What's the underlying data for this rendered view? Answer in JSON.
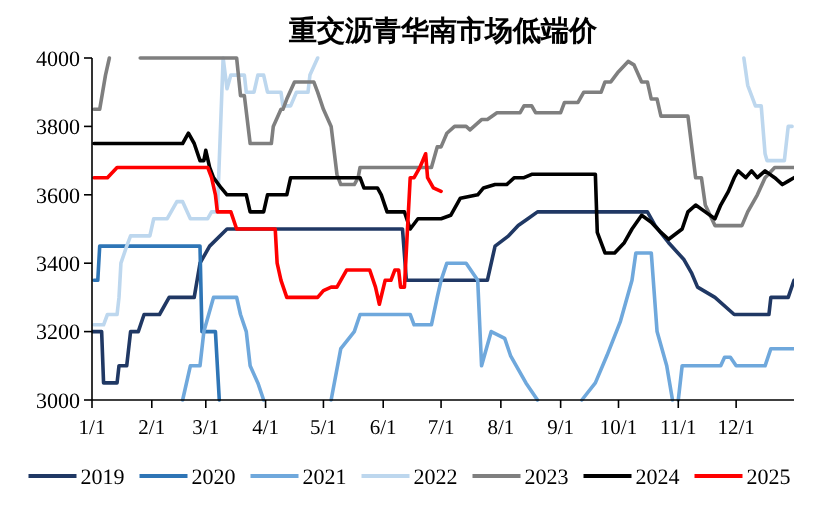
{
  "chart_data": {
    "type": "line",
    "title": "重交沥青华南市场低端价",
    "xlim": [
      "--01-01",
      "--12-31"
    ],
    "xticks": [
      {
        "value": "--01-01",
        "label": "1/1"
      },
      {
        "value": "--02-01",
        "label": "2/1"
      },
      {
        "value": "--03-01",
        "label": "3/1"
      },
      {
        "value": "--04-01",
        "label": "4/1"
      },
      {
        "value": "--05-01",
        "label": "5/1"
      },
      {
        "value": "--06-01",
        "label": "6/1"
      },
      {
        "value": "--07-01",
        "label": "7/1"
      },
      {
        "value": "--08-01",
        "label": "8/1"
      },
      {
        "value": "--09-01",
        "label": "9/1"
      },
      {
        "value": "--10-01",
        "label": "10/1"
      },
      {
        "value": "--11-01",
        "label": "11/1"
      },
      {
        "value": "--12-01",
        "label": "12/1"
      }
    ],
    "ylim": [
      3000,
      4000
    ],
    "yticks": [
      3000,
      3200,
      3400,
      3600,
      3800,
      4000
    ],
    "grid": false,
    "legend": "bottom",
    "marker": "none",
    "line_style": "solid",
    "series": [
      {
        "name": "2019",
        "color": "#203864",
        "x": [
          "--01-01",
          "--01-06",
          "--01-07",
          "--01-14",
          "--01-15",
          "--01-19",
          "--01-21",
          "--01-25",
          "--01-28",
          "--02-05",
          "--02-10",
          "--02-23",
          "--02-26",
          "--03-03",
          "--03-12",
          "--06-11",
          "--06-13",
          "--07-25",
          "--07-29",
          "--08-05",
          "--08-10",
          "--08-15",
          "--08-20",
          "--10-16",
          "--10-20",
          "--10-27",
          "--11-04",
          "--11-08",
          "--11-11",
          "--11-20",
          "--11-30",
          "--12-18",
          "--12-19",
          "--12-28",
          "--12-31"
        ],
        "values": [
          3200,
          3200,
          3050,
          3050,
          3100,
          3100,
          3200,
          3200,
          3250,
          3250,
          3300,
          3300,
          3400,
          3450,
          3500,
          3500,
          3350,
          3350,
          3450,
          3480,
          3510,
          3530,
          3550,
          3550,
          3510,
          3460,
          3410,
          3370,
          3330,
          3300,
          3250,
          3250,
          3300,
          3300,
          3350
        ]
      },
      {
        "name": "2020",
        "color": "#2e75b6",
        "x": [
          "--01-02",
          "--01-04",
          "--01-05",
          "--02-26",
          "--02-27",
          "--03-06",
          "--03-08"
        ],
        "values": [
          3350,
          3350,
          3450,
          3450,
          3200,
          3200,
          3000
        ]
      },
      {
        "name": "2021",
        "color": "#6fa8dc",
        "x": [
          "--02-17",
          "--02-21",
          "--02-26",
          "--02-28",
          "--03-05",
          "--03-17",
          "--03-19",
          "--03-22",
          "--03-24",
          "--03-28",
          "--03-31",
          "--04-11",
          "--05-05",
          "--05-10",
          "--05-17",
          "--05-20",
          "--06-15",
          "--06-17",
          "--06-26",
          "--06-29",
          "--07-01",
          "--07-04",
          "--07-14",
          "--07-20",
          "--07-22",
          "--07-27",
          "--08-03",
          "--08-06",
          "--08-09",
          "--08-14",
          "--08-20",
          "--08-29",
          "--09-12",
          "--09-19",
          "--09-25",
          "--10-02",
          "--10-08",
          "--10-10",
          "--10-18",
          "--10-21",
          "--10-26",
          "--10-29",
          "--10-30",
          "--11-01",
          "--11-03",
          "--11-23",
          "--11-25",
          "--11-28",
          "--12-01",
          "--12-16",
          "--12-19",
          "--12-31"
        ],
        "values": [
          3000,
          3100,
          3100,
          3200,
          3300,
          3300,
          3250,
          3200,
          3100,
          3050,
          3000,
          null,
          3000,
          3150,
          3200,
          3250,
          3250,
          3220,
          3220,
          3300,
          3350,
          3400,
          3400,
          3350,
          3100,
          3200,
          3180,
          3130,
          3100,
          3050,
          3000,
          null,
          3000,
          3050,
          3130,
          3230,
          3350,
          3430,
          3430,
          3200,
          3100,
          3000,
          null,
          3000,
          3100,
          3100,
          3125,
          3125,
          3100,
          3100,
          3150,
          3150
        ]
      },
      {
        "name": "2022",
        "color": "#bdd7ee",
        "x": [
          "--01-02",
          "--01-07",
          "--01-09",
          "--01-14",
          "--01-15",
          "--01-16",
          "--01-19",
          "--01-21",
          "--01-31",
          "--02-02",
          "--02-09",
          "--02-11",
          "--02-14",
          "--02-17",
          "--02-21",
          "--03-02",
          "--03-04",
          "--03-07",
          "--03-10",
          "--03-12",
          "--03-14",
          "--03-21",
          "--03-22",
          "--03-26",
          "--03-28",
          "--03-31",
          "--04-02",
          "--04-09",
          "--04-10",
          "--04-14",
          "--04-17",
          "--04-23",
          "--04-24",
          "--04-28",
          "--07-20",
          "--12-05",
          "--12-07",
          "--12-11",
          "--12-14",
          "--12-16",
          "--12-17",
          "--12-26",
          "--12-28",
          "--12-30"
        ],
        "values": [
          3220,
          3220,
          3250,
          3250,
          3300,
          3400,
          3450,
          3480,
          3480,
          3530,
          3530,
          3550,
          3580,
          3580,
          3530,
          3530,
          3550,
          3550,
          4000,
          3910,
          3950,
          3950,
          3900,
          3900,
          3950,
          3950,
          3900,
          3900,
          3860,
          3860,
          3900,
          3900,
          3950,
          4000,
          null,
          4000,
          3920,
          3860,
          3860,
          3720,
          3700,
          3700,
          3800,
          3800
        ]
      },
      {
        "name": "2023",
        "color": "#7f7f7f",
        "x": [
          "--01-02",
          "--01-05",
          "--01-08",
          "--01-10",
          "--01-16",
          "--01-26",
          "--03-17",
          "--03-19",
          "--03-21",
          "--03-24",
          "--04-04",
          "--04-05",
          "--04-09",
          "--04-10",
          "--04-12",
          "--04-16",
          "--04-26",
          "--04-28",
          "--05-01",
          "--05-05",
          "--05-08",
          "--05-10",
          "--05-17",
          "--05-19",
          "--05-20",
          "--06-26",
          "--06-29",
          "--07-01",
          "--07-04",
          "--07-08",
          "--07-14",
          "--07-16",
          "--07-22",
          "--07-25",
          "--07-30",
          "--08-11",
          "--08-13",
          "--08-17",
          "--08-19",
          "--09-01",
          "--09-03",
          "--09-10",
          "--09-13",
          "--09-22",
          "--09-24",
          "--09-27",
          "--10-01",
          "--10-06",
          "--10-09",
          "--10-13",
          "--10-16",
          "--10-18",
          "--10-21",
          "--10-23",
          "--11-06",
          "--11-10",
          "--11-13",
          "--11-15",
          "--11-20",
          "--12-04",
          "--12-07",
          "--12-12",
          "--12-16",
          "--12-21",
          "--12-31"
        ],
        "values": [
          3850,
          3850,
          3950,
          4000,
          null,
          4000,
          4000,
          3890,
          3890,
          3750,
          3750,
          3800,
          3850,
          3850,
          3880,
          3930,
          3930,
          3900,
          3850,
          3800,
          3660,
          3630,
          3630,
          3650,
          3680,
          3680,
          3740,
          3740,
          3780,
          3800,
          3800,
          3790,
          3820,
          3820,
          3840,
          3840,
          3860,
          3860,
          3840,
          3840,
          3870,
          3870,
          3900,
          3900,
          3930,
          3930,
          3960,
          3990,
          3980,
          3930,
          3930,
          3880,
          3880,
          3830,
          3830,
          3650,
          3650,
          3570,
          3510,
          3510,
          3550,
          3600,
          3650,
          3680,
          3680
        ]
      },
      {
        "name": "2024",
        "color": "#000000",
        "x": [
          "--01-02",
          "--02-17",
          "--02-20",
          "--02-23",
          "--02-26",
          "--02-28",
          "--03-01",
          "--03-03",
          "--03-05",
          "--03-09",
          "--03-12",
          "--03-22",
          "--03-24",
          "--03-31",
          "--04-02",
          "--04-12",
          "--04-14",
          "--05-20",
          "--05-22",
          "--05-29",
          "--05-31",
          "--06-03",
          "--06-12",
          "--06-15",
          "--06-19",
          "--07-01",
          "--07-06",
          "--07-11",
          "--07-20",
          "--07-23",
          "--07-29",
          "--08-04",
          "--08-08",
          "--08-13",
          "--08-17",
          "--09-19",
          "--09-20",
          "--09-24",
          "--09-29",
          "--10-04",
          "--10-08",
          "--10-13",
          "--10-18",
          "--10-23",
          "--10-27",
          "--11-03",
          "--11-06",
          "--11-10",
          "--11-15",
          "--11-20",
          "--11-23",
          "--11-27",
          "--11-30",
          "--12-02",
          "--12-06",
          "--12-09",
          "--12-12",
          "--12-16",
          "--12-21",
          "--12-25",
          "--12-28",
          "--12-31"
        ],
        "values": [
          3750,
          3750,
          3780,
          3750,
          3700,
          3700,
          3730,
          3680,
          3650,
          3620,
          3600,
          3600,
          3550,
          3550,
          3600,
          3600,
          3650,
          3650,
          3620,
          3620,
          3600,
          3550,
          3550,
          3500,
          3530,
          3530,
          3540,
          3590,
          3600,
          3620,
          3630,
          3630,
          3650,
          3650,
          3660,
          3660,
          3490,
          3430,
          3430,
          3460,
          3500,
          3540,
          3520,
          3490,
          3470,
          3500,
          3550,
          3570,
          3550,
          3530,
          3570,
          3610,
          3650,
          3670,
          3650,
          3670,
          3650,
          3670,
          3650,
          3630,
          3640,
          3650
        ]
      },
      {
        "name": "2025",
        "color": "#ff0000",
        "x": [
          "--01-02",
          "--01-09",
          "--01-14",
          "--03-02",
          "--03-04",
          "--03-06",
          "--03-07",
          "--03-14",
          "--03-17",
          "--04-06",
          "--04-07",
          "--04-09",
          "--04-12",
          "--04-28",
          "--05-01",
          "--05-05",
          "--05-08",
          "--05-10",
          "--05-13",
          "--05-25",
          "--05-28",
          "--05-30",
          "--06-02",
          "--06-05",
          "--06-07",
          "--06-09",
          "--06-10",
          "--06-12",
          "--06-15",
          "--06-17",
          "--06-20",
          "--06-23",
          "--06-24",
          "--06-27",
          "--07-01"
        ],
        "values": [
          3650,
          3650,
          3680,
          3680,
          3650,
          3600,
          3550,
          3550,
          3500,
          3500,
          3400,
          3350,
          3300,
          3300,
          3320,
          3330,
          3330,
          3350,
          3380,
          3380,
          3330,
          3280,
          3350,
          3350,
          3380,
          3380,
          3330,
          3330,
          3650,
          3650,
          3680,
          3720,
          3650,
          3620,
          3610
        ]
      }
    ]
  }
}
